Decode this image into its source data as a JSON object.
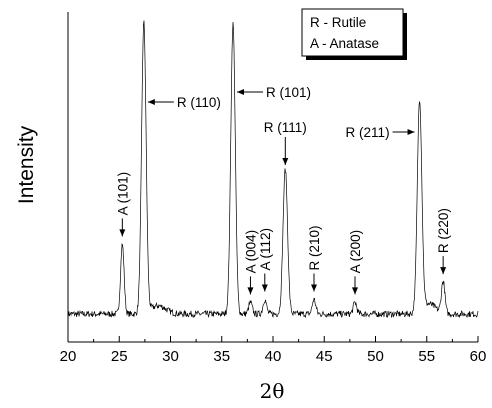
{
  "chart_data": {
    "type": "line",
    "title": "",
    "xlabel": "2θ",
    "ylabel": "Intensity",
    "xlim": [
      20,
      60
    ],
    "x_ticks": [
      "20",
      "25",
      "30",
      "35",
      "40",
      "45",
      "50",
      "55",
      "60"
    ],
    "y_ticks_shown": false,
    "grid": false,
    "legend": {
      "placement": "top-right",
      "entries": [
        "R - Rutile",
        "A - Anatase"
      ]
    },
    "series": [
      {
        "peaks": [
          {
            "x": 25.3,
            "height": 0.24
          },
          {
            "x": 27.4,
            "height": 1.0
          },
          {
            "x": 36.1,
            "height": 1.0
          },
          {
            "x": 37.8,
            "height": 0.04
          },
          {
            "x": 39.2,
            "height": 0.05
          },
          {
            "x": 41.2,
            "height": 0.5
          },
          {
            "x": 44.0,
            "height": 0.05
          },
          {
            "x": 48.0,
            "height": 0.04
          },
          {
            "x": 54.3,
            "height": 0.73
          },
          {
            "x": 56.6,
            "height": 0.11
          }
        ]
      }
    ],
    "annotations": [
      {
        "text": "A (101)",
        "x": 25.3,
        "orientation": "vertical"
      },
      {
        "text": "R (110)",
        "x": 27.4,
        "orientation": "horizontal"
      },
      {
        "text": "R (101)",
        "x": 36.1,
        "orientation": "horizontal"
      },
      {
        "text": "A (004)",
        "x": 37.8,
        "orientation": "vertical"
      },
      {
        "text": "A (112)",
        "x": 39.2,
        "orientation": "vertical"
      },
      {
        "text": "R (111)",
        "x": 41.2,
        "orientation": "horizontal-above"
      },
      {
        "text": "R (210)",
        "x": 44.0,
        "orientation": "vertical"
      },
      {
        "text": "A (200)",
        "x": 48.0,
        "orientation": "vertical"
      },
      {
        "text": "R (211)",
        "x": 54.3,
        "orientation": "horizontal"
      },
      {
        "text": "R (220)",
        "x": 56.6,
        "orientation": "vertical"
      }
    ]
  }
}
